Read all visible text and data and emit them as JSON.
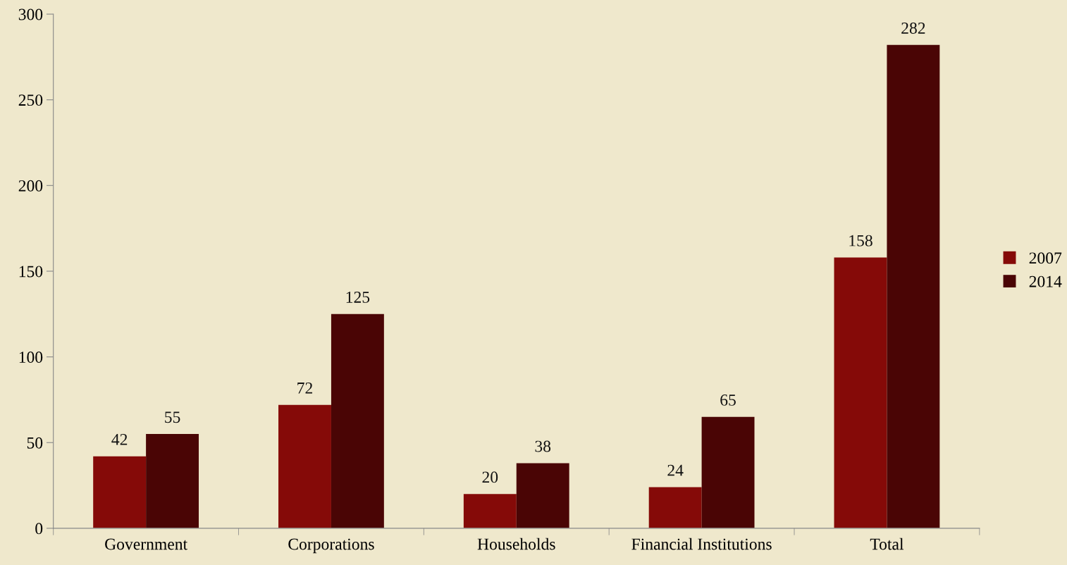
{
  "chart_data": {
    "type": "bar",
    "categories": [
      "Government",
      "Corporations",
      "Households",
      "Financial Institutions",
      "Total"
    ],
    "series": [
      {
        "name": "2007",
        "color": "#850a08",
        "values": [
          42,
          72,
          20,
          24,
          158
        ]
      },
      {
        "name": "2014",
        "color": "#4a0505",
        "values": [
          55,
          125,
          38,
          65,
          282
        ]
      }
    ],
    "ylim": [
      0,
      300
    ],
    "yticks": [
      0,
      50,
      100,
      150,
      200,
      250,
      300
    ],
    "grid": false,
    "legend": "right",
    "data_labels": true
  }
}
